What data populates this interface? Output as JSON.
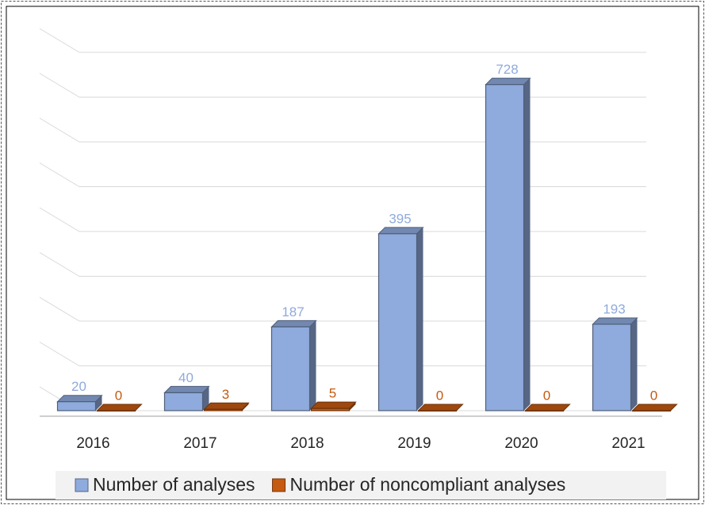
{
  "chart_data": {
    "type": "bar3d",
    "categories": [
      "2016",
      "2017",
      "2018",
      "2019",
      "2020",
      "2021"
    ],
    "series": [
      {
        "name": "Number of analyses",
        "color": "#8faadc",
        "values": [
          20,
          40,
          187,
          395,
          728,
          193
        ]
      },
      {
        "name": "Number of noncompliant analyses",
        "color": "#c55a11",
        "values": [
          0,
          3,
          5,
          0,
          0,
          0
        ]
      }
    ],
    "ylim": [
      0,
      800
    ],
    "yticks": [
      0,
      100,
      200,
      300,
      400,
      500,
      600,
      700,
      800
    ],
    "grid": true,
    "legend": "bottom"
  }
}
